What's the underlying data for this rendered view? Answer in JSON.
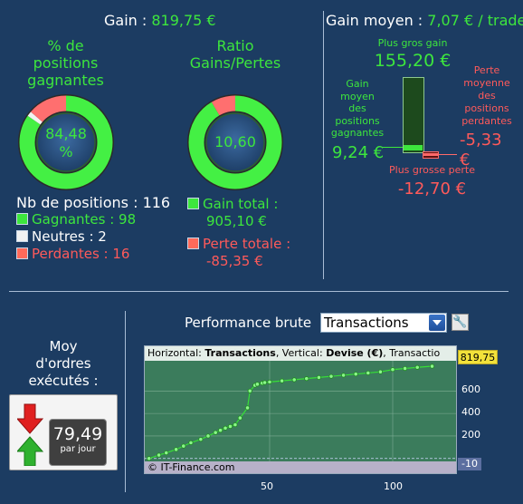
{
  "summary": {
    "gain_label": "Gain : ",
    "gain_value": "819,75 €",
    "gain_avg_label": "Gain moyen : ",
    "gain_avg_value": "7,07 € / trade"
  },
  "donut_winning": {
    "title_line1": "% de",
    "title_line2": "positions",
    "title_line3": "gagnantes",
    "value_line1": "84,48",
    "value_line2": "%",
    "fraction_green": 0.8448,
    "fraction_white": 0.0172,
    "fraction_red": 0.138
  },
  "donut_ratio": {
    "title_line1": "Ratio",
    "title_line2": "Gains/Pertes",
    "value": "10,60",
    "fraction_green": 0.9137,
    "fraction_red": 0.0863
  },
  "positions": {
    "total_label": "Nb de positions : 116",
    "winning_label": "Gagnantes : 98",
    "neutral_label": "Neutres : 2",
    "losing_label": "Perdantes : 16"
  },
  "totals": {
    "gain_total_line1": "Gain total :",
    "gain_total_line2": "905,10 €",
    "loss_total_line1": "Perte totale :",
    "loss_total_line2": "-85,35 €"
  },
  "extremes": {
    "max_gain_label": "Plus gros gain",
    "max_gain_value": "155,20 €",
    "avg_gain_line1": "Gain",
    "avg_gain_line2": "moyen",
    "avg_gain_line3": "des",
    "avg_gain_line4": "positions",
    "avg_gain_line5": "gagnantes",
    "avg_gain_value": "9,24 €",
    "avg_loss_line1": "Perte",
    "avg_loss_line2": "moyenne",
    "avg_loss_line3": "des",
    "avg_loss_line4": "positions",
    "avg_loss_line5": "perdantes",
    "avg_loss_value": "-5,33 €",
    "max_loss_label": "Plus grosse perte",
    "max_loss_value": "-12,70 €"
  },
  "orders": {
    "label_line1": "Moy",
    "label_line2": "d'ordres",
    "label_line3": "exécutés :",
    "value": "79,49",
    "unit": "par jour"
  },
  "performance": {
    "title": "Performance brute",
    "select_value": "Transactions",
    "chart_header_prefix": "Horizontal: ",
    "chart_header_h": "Transactions",
    "chart_header_mid": ", Vertical: ",
    "chart_header_v": "Devise (€)",
    "chart_header_tail": ", Transactio",
    "watermark": "© IT-Finance.com",
    "current_value": "819,75",
    "low_value": "-10"
  },
  "colors": {
    "background": "#1c3c62",
    "green": "#3de63d",
    "red": "#ff5a5a",
    "chart_bg": "#3b7c5c"
  },
  "chart_data": {
    "type": "line",
    "xlabel": "",
    "ylabel": "",
    "xlim": [
      0,
      125
    ],
    "ylim": [
      -10,
      820
    ],
    "x_ticks": [
      50,
      100
    ],
    "y_ticks": [
      200,
      400,
      600
    ],
    "series": [
      {
        "x": [
          1,
          5,
          8,
          12,
          15,
          18,
          22,
          25,
          28,
          30,
          32,
          34,
          36,
          38,
          41,
          42,
          44,
          45,
          47,
          48,
          50,
          55,
          60,
          65,
          70,
          75,
          80,
          85,
          90,
          95,
          100,
          105,
          110,
          116
        ],
        "y": [
          0,
          30,
          50,
          80,
          110,
          140,
          170,
          200,
          230,
          250,
          270,
          285,
          300,
          360,
          450,
          600,
          650,
          660,
          670,
          675,
          680,
          690,
          700,
          710,
          720,
          730,
          740,
          750,
          760,
          770,
          790,
          800,
          810,
          819.75
        ]
      }
    ]
  }
}
